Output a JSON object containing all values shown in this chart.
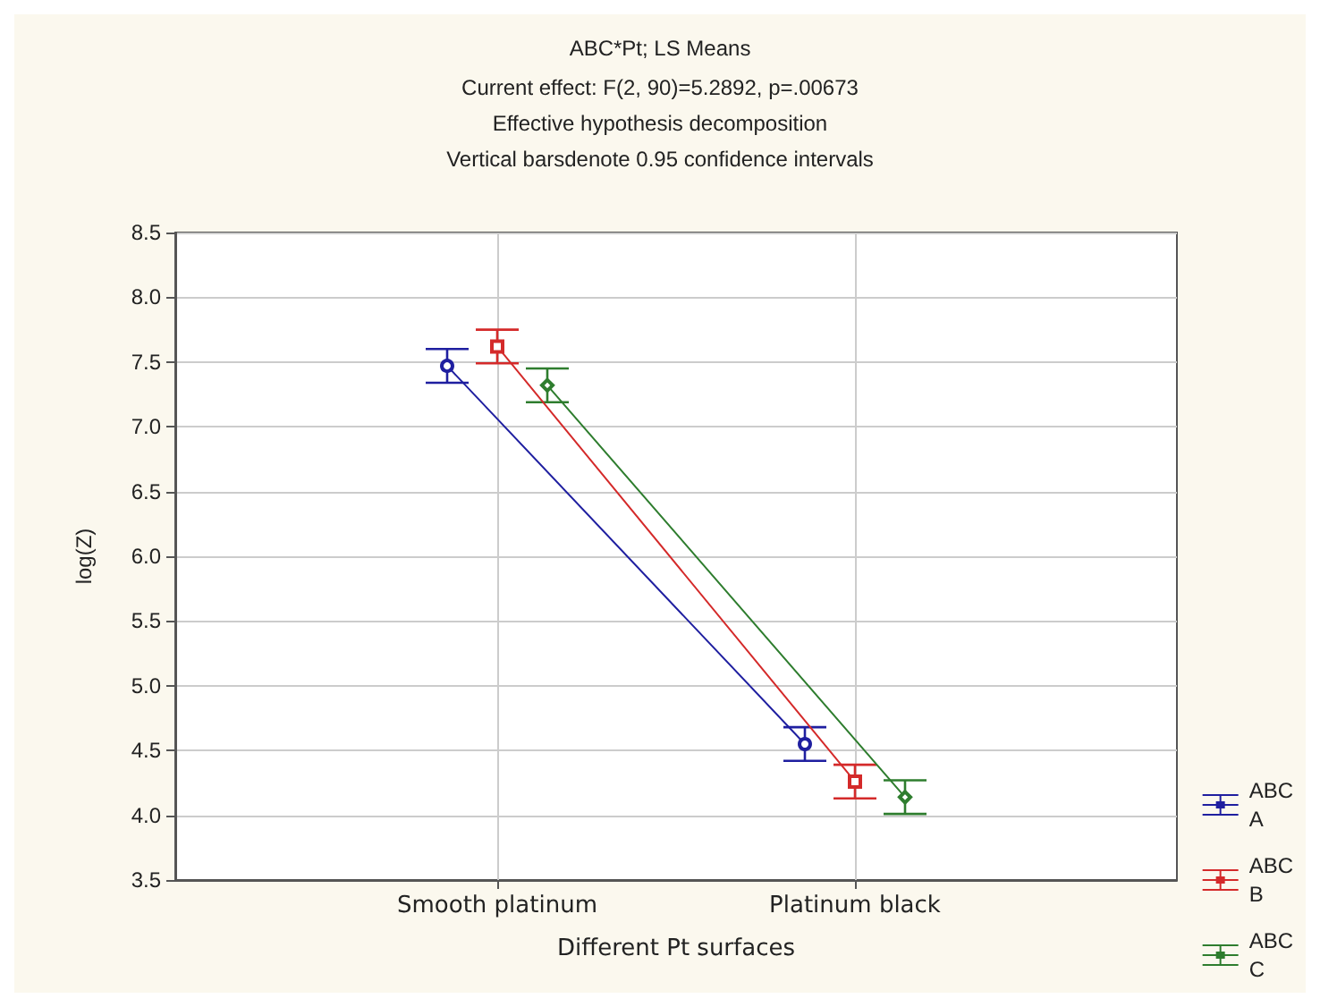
{
  "chart_data": {
    "type": "line",
    "title": "ABC*Pt; LS Means",
    "subtitle": "Current effect: F(2, 90)=5.2892, p=.00673\nEffective hypothesis decomposition\nVertical barsdenote 0.95 confidence intervals",
    "xlabel": "Different Pt surfaces",
    "ylabel": "log(Z)",
    "categories": [
      "Smooth platinum",
      "Platinum black"
    ],
    "series": [
      {
        "name": "ABC A",
        "color": "#1f1fa0",
        "marker": "circle",
        "values": [
          7.47,
          4.55
        ],
        "errors": [
          0.13,
          0.13
        ]
      },
      {
        "name": "ABC B",
        "color": "#d42a2a",
        "marker": "square",
        "values": [
          7.62,
          4.26
        ],
        "errors": [
          0.13,
          0.13
        ]
      },
      {
        "name": "ABC C",
        "color": "#2e7d2e",
        "marker": "diamond",
        "values": [
          7.32,
          4.14
        ],
        "errors": [
          0.13,
          0.13
        ]
      }
    ],
    "ylim": [
      3.5,
      8.5
    ],
    "yticks": [
      {
        "value": 3.5,
        "label": "3.5"
      },
      {
        "value": 4,
        "label": "4.0"
      },
      {
        "value": 4.5,
        "label": "4.5"
      },
      {
        "value": 5,
        "label": "5.0"
      },
      {
        "value": 5.5,
        "label": "5.5"
      },
      {
        "value": 6,
        "label": "6.0"
      },
      {
        "value": 6.5,
        "label": "6.5"
      },
      {
        "value": 7,
        "label": "7.0"
      },
      {
        "value": 7.5,
        "label": "7.5"
      },
      {
        "value": 8,
        "label": "8.0"
      },
      {
        "value": 8.5,
        "label": "8.5"
      }
    ],
    "grid": true,
    "legend": "bottom right",
    "line_style": "solid"
  }
}
